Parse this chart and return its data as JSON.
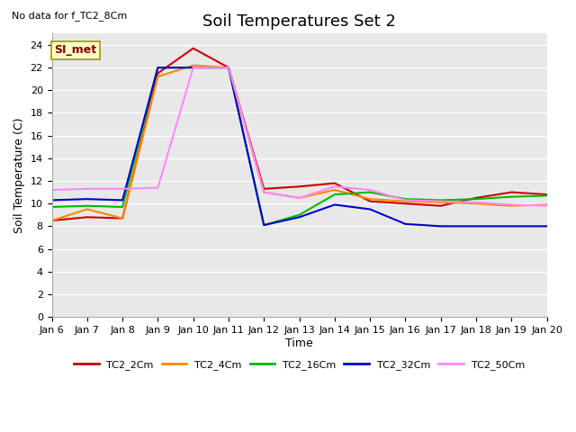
{
  "title": "Soil Temperatures Set 2",
  "xlabel": "Time",
  "ylabel": "Soil Temperature (C)",
  "top_left_note": "No data for f_TC2_8Cm",
  "annotation_text": "SI_met",
  "ylim": [
    0,
    25
  ],
  "yticks": [
    0,
    2,
    4,
    6,
    8,
    10,
    12,
    14,
    16,
    18,
    20,
    22,
    24
  ],
  "bg_color": "#e8e8e8",
  "series_order": [
    "TC2_2Cm",
    "TC2_4Cm",
    "TC2_16Cm",
    "TC2_32Cm",
    "TC2_50Cm"
  ],
  "series_colors": [
    "#cc0000",
    "#ff8800",
    "#00bb00",
    "#0000cc",
    "#ff88ff"
  ],
  "series_lw": [
    1.5,
    1.5,
    1.5,
    1.5,
    1.5
  ],
  "x_labels": [
    "Jan 6",
    "Jan 7",
    "Jan 8",
    "Jan 9",
    "Jan 10",
    "Jan 11",
    "Jan 12",
    "Jan 13",
    "Jan 14",
    "Jan 15",
    "Jan 16",
    "Jan 17",
    "Jan 18",
    "Jan 19",
    "Jan 20"
  ],
  "TC2_2Cm": [
    8.5,
    8.8,
    8.7,
    21.5,
    23.7,
    22.0,
    11.3,
    11.5,
    11.8,
    10.2,
    10.0,
    9.8,
    10.5,
    11.0,
    10.8
  ],
  "TC2_4Cm": [
    8.5,
    9.5,
    8.7,
    21.2,
    22.2,
    22.0,
    11.0,
    10.5,
    11.2,
    10.4,
    10.2,
    10.1,
    10.0,
    9.8,
    9.9
  ],
  "TC2_16Cm": [
    9.7,
    9.8,
    9.7,
    22.0,
    22.0,
    22.0,
    8.1,
    9.0,
    10.8,
    11.0,
    10.4,
    10.3,
    10.4,
    10.6,
    10.7
  ],
  "TC2_32Cm": [
    10.3,
    10.4,
    10.3,
    22.0,
    22.0,
    22.0,
    8.1,
    8.8,
    9.9,
    9.5,
    8.2,
    8.0,
    8.0,
    8.0,
    8.0
  ],
  "TC2_50Cm": [
    11.2,
    11.3,
    11.3,
    11.4,
    22.0,
    22.0,
    11.0,
    10.5,
    11.5,
    11.2,
    10.3,
    10.2,
    10.1,
    9.9,
    9.8
  ],
  "font_size_ticks": 8,
  "font_size_title": 13,
  "font_size_axis": 9,
  "font_size_legend": 8,
  "font_size_note": 8,
  "annotation_fontsize": 9,
  "annotation_color": "#880000",
  "annotation_facecolor": "#ffffcc",
  "annotation_edgecolor": "#999900"
}
